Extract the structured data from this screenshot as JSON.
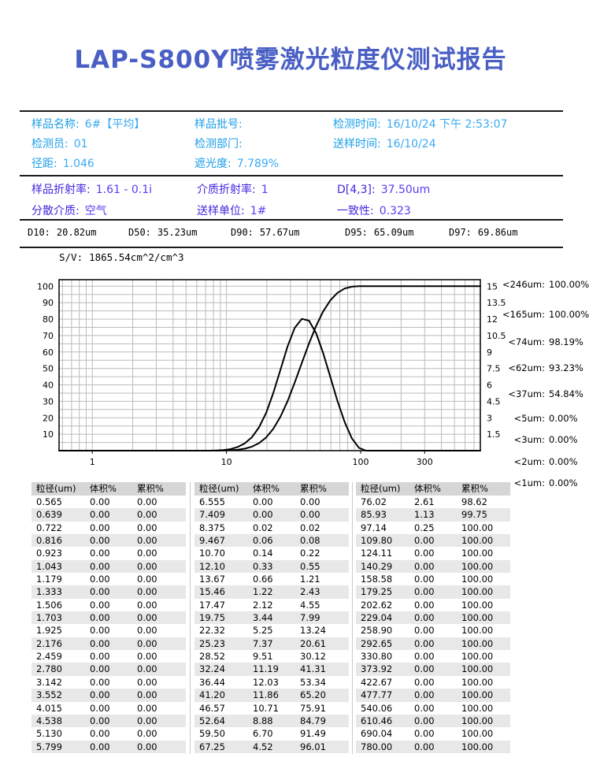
{
  "title": "LAP-S800Y喷雾激光粒度仪测试报告",
  "sample_info": {
    "col1": [
      {
        "label": "样品名称:",
        "value": "6#【平均】"
      },
      {
        "label": "检测员:",
        "value": "01"
      },
      {
        "label": "径距:",
        "value": "1.046"
      }
    ],
    "col2": [
      {
        "label": "样品批号:",
        "value": ""
      },
      {
        "label": "检测部门:",
        "value": ""
      },
      {
        "label": "遮光度:",
        "value": "7.789%"
      }
    ],
    "col3": [
      {
        "label": "检测时间:",
        "value": "16/10/24 下午 2:53:07"
      },
      {
        "label": "送样时间:",
        "value": "16/10/24"
      }
    ]
  },
  "optical_info": {
    "col1": [
      {
        "label": "样品折射率:",
        "value": "1.61 - 0.1i"
      },
      {
        "label": "分散介质:",
        "value": "空气"
      }
    ],
    "col2": [
      {
        "label": "介质折射率:",
        "value": "1"
      },
      {
        "label": "送样单位:",
        "value": "1#"
      }
    ],
    "col3": [
      {
        "label": "D[4,3]:",
        "value": "37.50um"
      },
      {
        "label": "一致性:",
        "value": "0.323"
      }
    ]
  },
  "d_values": [
    {
      "label": "D10:",
      "value": "20.82um"
    },
    {
      "label": "D50:",
      "value": "35.23um"
    },
    {
      "label": "D90:",
      "value": "57.67um"
    },
    {
      "label": "D95:",
      "value": "65.09um"
    },
    {
      "label": "D97:",
      "value": "69.86um"
    }
  ],
  "sv": {
    "label": "S/V:",
    "value": "1865.54cm^2/cm^3"
  },
  "percentiles": [
    {
      "label": "<246um:",
      "value": "100.00%"
    },
    {
      "label": "<165um:",
      "value": "100.00%"
    },
    {
      "label": "<74um:",
      "value": "98.19%"
    },
    {
      "label": "<62um:",
      "value": "93.23%"
    },
    {
      "label": "<37um:",
      "value": "54.84%"
    },
    {
      "label": "<5um:",
      "value": "0.00%"
    },
    {
      "label": "<3um:",
      "value": "0.00%"
    },
    {
      "label": "<2um:",
      "value": "0.00%"
    },
    {
      "label": "<1um:",
      "value": "0.00%"
    }
  ],
  "table": {
    "headers": [
      "粒径(um)",
      "体积%",
      "累积%"
    ]
  },
  "chart_data": {
    "type": "line",
    "x_scale": "log",
    "x_range": [
      0.565,
      780
    ],
    "x_ticks": [
      1,
      10,
      100,
      300
    ],
    "left_axis": {
      "ticks": [
        10,
        20,
        30,
        40,
        50,
        60,
        70,
        80,
        90,
        100
      ],
      "range": [
        0,
        104
      ]
    },
    "right_axis": {
      "ticks": [
        1.5,
        3,
        4.5,
        6,
        7.5,
        9,
        10.5,
        12,
        13.5,
        15
      ],
      "range": [
        0,
        15.6
      ]
    },
    "grid": true,
    "curve_color": "#000000",
    "grid_color": "#bbbbbb",
    "series": [
      {
        "name": "累积%",
        "axis": "left",
        "values_key": "cumulative"
      },
      {
        "name": "体积%",
        "axis": "right",
        "values_key": "volume"
      }
    ],
    "distribution": {
      "sizes": [
        0.565,
        0.639,
        0.722,
        0.816,
        0.923,
        1.043,
        1.179,
        1.333,
        1.506,
        1.703,
        1.925,
        2.176,
        2.459,
        2.78,
        3.142,
        3.552,
        4.015,
        4.538,
        5.13,
        5.799,
        6.555,
        7.409,
        8.375,
        9.467,
        10.7,
        12.1,
        13.67,
        15.46,
        17.47,
        19.75,
        22.32,
        25.23,
        28.52,
        32.24,
        36.44,
        41.2,
        46.57,
        52.64,
        59.5,
        67.25,
        76.02,
        85.93,
        97.14,
        109.8,
        124.11,
        140.29,
        158.58,
        179.25,
        202.62,
        229.04,
        258.9,
        292.65,
        330.8,
        373.92,
        422.67,
        477.77,
        540.06,
        610.46,
        690.04,
        780.0
      ],
      "volume": [
        0,
        0,
        0,
        0,
        0,
        0,
        0,
        0,
        0,
        0,
        0,
        0,
        0,
        0,
        0,
        0,
        0,
        0,
        0,
        0,
        0,
        0,
        0.02,
        0.06,
        0.14,
        0.33,
        0.66,
        1.22,
        2.12,
        3.44,
        5.25,
        7.37,
        9.51,
        11.19,
        12.03,
        11.86,
        10.71,
        8.88,
        6.7,
        4.52,
        2.61,
        1.13,
        0.25,
        0,
        0,
        0,
        0,
        0,
        0,
        0,
        0,
        0,
        0,
        0,
        0,
        0,
        0,
        0,
        0,
        0
      ],
      "cumulative": [
        0,
        0,
        0,
        0,
        0,
        0,
        0,
        0,
        0,
        0,
        0,
        0,
        0,
        0,
        0,
        0,
        0,
        0,
        0,
        0,
        0,
        0,
        0.02,
        0.08,
        0.22,
        0.55,
        1.21,
        2.43,
        4.55,
        7.99,
        13.24,
        20.61,
        30.12,
        41.31,
        53.34,
        65.2,
        75.91,
        84.79,
        91.49,
        96.01,
        98.62,
        99.75,
        100,
        100,
        100,
        100,
        100,
        100,
        100,
        100,
        100,
        100,
        100,
        100,
        100,
        100,
        100,
        100,
        100,
        100
      ]
    }
  }
}
